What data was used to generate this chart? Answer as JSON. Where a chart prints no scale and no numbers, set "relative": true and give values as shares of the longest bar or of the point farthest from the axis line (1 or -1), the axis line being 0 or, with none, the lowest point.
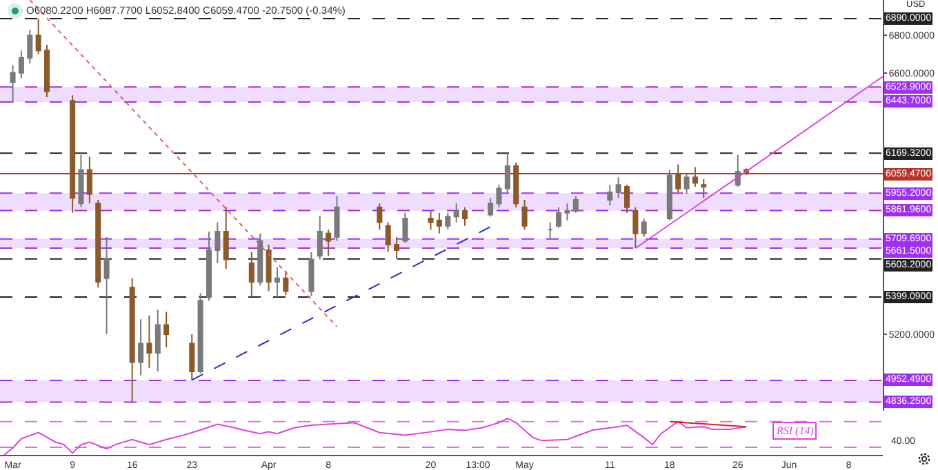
{
  "chart_data": [
    {
      "type": "candlestick",
      "ylabel": "USD",
      "annotations": [
        "O6080.2200 H6087.7700 L6052.8400 C6059.4700 -20.7500 (-0.34%)"
      ],
      "x": [
        "--03-02",
        "--03-03",
        "--03-04",
        "--03-05",
        "--03-06",
        "--03-09",
        "--03-10",
        "--03-11",
        "--03-12",
        "--03-13",
        "--03-16",
        "--03-17",
        "--03-18",
        "--03-19",
        "--03-20",
        "--03-23",
        "--03-24",
        "--03-25",
        "--03-26",
        "--03-27",
        "--03-30",
        "--03-31",
        "--04-01",
        "--04-02",
        "--04-03",
        "--04-06",
        "--04-07",
        "--04-08",
        "--04-09",
        "--04-14",
        "--04-15",
        "--04-16",
        "--04-17",
        "--04-20",
        "--04-21",
        "--04-22",
        "--04-23",
        "--04-24",
        "--04-27",
        "--04-28",
        "--04-29",
        "--04-30",
        "--05-01",
        "--05-04",
        "--05-05",
        "--05-06",
        "--05-07",
        "--05-11",
        "--05-12",
        "--05-13",
        "--05-14",
        "--05-15",
        "--05-18",
        "--05-19",
        "--05-20",
        "--05-21",
        "--05-22",
        "--05-26",
        "--05-27"
      ],
      "ohlc": [
        [
          6550,
          6640,
          6440,
          6600
        ],
        [
          6600,
          6720,
          6570,
          6680
        ],
        [
          6680,
          6830,
          6650,
          6800
        ],
        [
          6800,
          6890,
          6700,
          6720
        ],
        [
          6720,
          6750,
          6470,
          6500
        ],
        [
          6450,
          6480,
          5850,
          5930
        ],
        [
          5900,
          6160,
          5880,
          6080
        ],
        [
          6080,
          6150,
          5900,
          5950
        ],
        [
          5900,
          5920,
          5450,
          5480
        ],
        [
          5500,
          5720,
          5200,
          5600
        ],
        [
          5450,
          5500,
          4836.25,
          5050
        ],
        [
          5050,
          5280,
          4980,
          5150
        ],
        [
          5150,
          5300,
          5020,
          5100
        ],
        [
          5100,
          5330,
          5000,
          5250
        ],
        [
          5250,
          5320,
          5130,
          5200
        ],
        [
          5150,
          5200,
          4952,
          5000
        ],
        [
          5000,
          5420,
          4990,
          5380
        ],
        [
          5400,
          5750,
          5380,
          5650
        ],
        [
          5650,
          5800,
          5580,
          5750
        ],
        [
          5750,
          5880,
          5550,
          5600
        ],
        [
          5580,
          5640,
          5399.09,
          5480
        ],
        [
          5480,
          5740,
          5460,
          5700
        ],
        [
          5650,
          5680,
          5430,
          5480
        ],
        [
          5480,
          5560,
          5400,
          5500
        ],
        [
          5500,
          5540,
          5410,
          5430
        ],
        [
          5430,
          5640,
          5405,
          5600
        ],
        [
          5620,
          5835,
          5600,
          5750
        ],
        [
          5740,
          5760,
          5620,
          5700
        ],
        [
          5720,
          5940,
          5700,
          5880
        ],
        [
          5880,
          5900,
          5760,
          5800
        ],
        [
          5780,
          5800,
          5640,
          5680
        ],
        [
          5680,
          5720,
          5603.2,
          5650
        ],
        [
          5700,
          5850,
          5690,
          5820
        ],
        [
          5820,
          5860,
          5760,
          5800
        ],
        [
          5810,
          5850,
          5740,
          5780
        ],
        [
          5780,
          5850,
          5760,
          5830
        ],
        [
          5830,
          5900,
          5800,
          5860
        ],
        [
          5860,
          5880,
          5780,
          5820
        ],
        [
          5840,
          5930,
          5830,
          5900
        ],
        [
          5900,
          6000,
          5880,
          5980
        ],
        [
          5980,
          6169.32,
          5960,
          6100
        ],
        [
          6100,
          6120,
          5880,
          5900
        ],
        [
          5880,
          5920,
          5760,
          5780
        ],
        [
          5760,
          5800,
          5709.69,
          5760
        ],
        [
          5780,
          5880,
          5770,
          5850
        ],
        [
          5850,
          5900,
          5810,
          5860
        ],
        [
          5860,
          5940,
          5850,
          5920
        ],
        [
          5920,
          6000,
          5890,
          5960
        ],
        [
          5960,
          6040,
          5930,
          6000
        ],
        [
          5990,
          6000,
          5850,
          5880
        ],
        [
          5860,
          5880,
          5661.5,
          5740
        ],
        [
          5740,
          5820,
          5720,
          5800
        ],
        [
          5820,
          6080,
          5810,
          6050
        ],
        [
          6060,
          6110,
          5960,
          5980
        ],
        [
          5980,
          6060,
          5950,
          6040
        ],
        [
          6040,
          6095,
          5990,
          6010
        ],
        [
          6000,
          6030,
          5930,
          5990
        ],
        [
          6000,
          6160,
          5990,
          6070
        ],
        [
          6080.22,
          6087.77,
          6052.84,
          6059.47
        ]
      ],
      "colors": [
        "#7a7a7a",
        "#7a7a7a",
        "#7a7a7a",
        "#8b5a2b",
        "#8b5a2b",
        "#8b5a2b",
        "#7a7a7a",
        "#8b5a2b",
        "#8b5a2b",
        "#7a7a7a",
        "#8b5a2b",
        "#7a7a7a",
        "#8b5a2b",
        "#7a7a7a",
        "#8b5a2b",
        "#8b5a2b",
        "#7a7a7a",
        "#7a7a7a",
        "#7a7a7a",
        "#8b5a2b",
        "#8b5a2b",
        "#7a7a7a",
        "#8b5a2b",
        "#7a7a7a",
        "#8b5a2b",
        "#7a7a7a",
        "#7a7a7a",
        "#8b5a2b",
        "#7a7a7a",
        "#8b5a2b",
        "#8b5a2b",
        "#8b5a2b",
        "#7a7a7a",
        "#8b5a2b",
        "#8b5a2b",
        "#7a7a7a",
        "#7a7a7a",
        "#8b5a2b",
        "#7a7a7a",
        "#7a7a7a",
        "#7a7a7a",
        "#8b5a2b",
        "#8b5a2b",
        "#7a7a7a",
        "#7a7a7a",
        "#7a7a7a",
        "#7a7a7a",
        "#7a7a7a",
        "#7a7a7a",
        "#8b5a2b",
        "#8b5a2b",
        "#7a7a7a",
        "#7a7a7a",
        "#8b5a2b",
        "#7a7a7a",
        "#8b5a2b",
        "#8b5a2b",
        "#7a7a7a",
        "#8b5a2b"
      ],
      "series": [
        {
          "type": "line",
          "color": "#e06060",
          "line_style": "dotted",
          "x": [
            "--03-04",
            "--04-09"
          ],
          "values": [
            6990,
            5240
          ]
        },
        {
          "type": "line",
          "color": "#2a2acc",
          "line_style": "dashed",
          "x": [
            "--03-23",
            "--04-27"
          ],
          "values": [
            4955,
            5775
          ]
        },
        {
          "type": "line",
          "color": "#e040e0",
          "line_style": "solid",
          "x": [
            "--05-14",
            "--06-12"
          ],
          "values": [
            5660,
            6580
          ]
        }
      ],
      "xlim": [
        "--02-29T12:00",
        "--06-12"
      ],
      "ylim": [
        4790,
        6990
      ],
      "yticks": [
        {
          "value": 6800,
          "label": "6800.0000"
        },
        {
          "value": 6600,
          "label": "6600.0000"
        },
        {
          "value": 5200,
          "label": "5200.0000"
        }
      ],
      "tick_labels": "y",
      "bands": [
        {
          "axis": "y",
          "from": 6443.7,
          "to": 6523.9,
          "color": "#f0dcff"
        },
        {
          "axis": "y",
          "from": 5861.96,
          "to": 5955.2,
          "color": "#f0dcff"
        },
        {
          "axis": "y",
          "from": 5661.5,
          "to": 5709.69,
          "color": "#f0dcff"
        },
        {
          "axis": "y",
          "from": 4836.25,
          "to": 4952.49,
          "color": "#f0dcff"
        }
      ],
      "ref_lines": [
        {
          "axis": "y",
          "value": 6890,
          "label": "6890.0000",
          "color": "#222222",
          "line_style": "dashed"
        },
        {
          "axis": "y",
          "value": 6523.9,
          "label": "6523.9000",
          "color": "#a030f0",
          "line_style": "dashed"
        },
        {
          "axis": "y",
          "value": 6443.7,
          "label": "6443.7000",
          "color": "#a030f0",
          "line_style": "dashed"
        },
        {
          "axis": "y",
          "value": 6169.32,
          "label": "6169.3200",
          "color": "#222222",
          "line_style": "dashed"
        },
        {
          "axis": "y",
          "value": 6059.47,
          "label": "6059.4700",
          "color": "#b8332a",
          "line_style": "solid"
        },
        {
          "axis": "y",
          "value": 5955.2,
          "label": "5955.2000",
          "color": "#a030f0",
          "line_style": "dashed"
        },
        {
          "axis": "y",
          "value": 5861.96,
          "label": "5861.9600",
          "color": "#a030f0",
          "line_style": "dashed"
        },
        {
          "axis": "y",
          "value": 5709.69,
          "label": "5709.6900",
          "color": "#a030f0",
          "line_style": "dashed"
        },
        {
          "axis": "y",
          "value": 5661.5,
          "label": "5661.5000",
          "color": "#a030f0",
          "line_style": "dashed"
        },
        {
          "axis": "y",
          "value": 5603.2,
          "label": "5603.2000",
          "color": "#222222",
          "line_style": "dashed"
        },
        {
          "axis": "y",
          "value": 5399.09,
          "label": "5399.0900",
          "color": "#222222",
          "line_style": "dashed"
        },
        {
          "axis": "y",
          "value": 4952.49,
          "label": "4952.4900",
          "color": "#a030f0",
          "line_style": "dashed"
        },
        {
          "axis": "y",
          "value": 4836.25,
          "label": "4836.2500",
          "color": "#a030f0",
          "line_style": "dashed"
        }
      ]
    },
    {
      "type": "line",
      "legend": false,
      "relative": true,
      "annotations": [
        "40.00"
      ],
      "x": [
        "--03-01",
        "--03-02",
        "--03-03",
        "--03-05",
        "--03-07",
        "--03-08",
        "--03-09",
        "--03-10",
        "--03-11",
        "--03-13",
        "--03-14",
        "--03-16",
        "--03-18",
        "--03-20",
        "--03-22",
        "--03-24",
        "--03-26",
        "--03-28",
        "--03-29",
        "--03-31",
        "--04-01",
        "--04-02",
        "--04-04",
        "--04-06",
        "--04-11",
        "--04-14",
        "--04-17",
        "--04-20",
        "--04-22",
        "--04-24",
        "--04-26",
        "--04-28",
        "--04-29",
        "--04-30",
        "--05-02",
        "--05-03",
        "--05-06",
        "--05-09",
        "--05-12",
        "--05-13",
        "--05-15",
        "--05-16",
        "--05-17",
        "--05-19",
        "--05-20",
        "--05-22",
        "--05-23",
        "--05-25",
        "--05-27"
      ],
      "series": [
        {
          "name": "RSI (14)",
          "color": "#e040e0",
          "values": [
            0,
            0.19,
            0.44,
            0.61,
            0.35,
            0.28,
            0.05,
            0.28,
            0.35,
            0.16,
            0.28,
            0.42,
            0.28,
            0.42,
            0.54,
            0.68,
            0.84,
            0.74,
            0.68,
            0.58,
            0.63,
            0.58,
            0.74,
            0.81,
            0.88,
            0.61,
            0.54,
            0.63,
            0.7,
            0.67,
            0.74,
            0.88,
            1,
            0.88,
            0.47,
            0.39,
            0.42,
            0.68,
            0.77,
            0.81,
            0.47,
            0.28,
            0.58,
            0.91,
            0.74,
            0.77,
            0.7,
            0.7,
            0.77
          ]
        },
        {
          "type": "line",
          "color": "#e02020",
          "x": [
            "--05-18",
            "--05-27"
          ],
          "values": [
            0.91,
            0.77
          ]
        }
      ],
      "xlim": [
        "--02-29T12:00",
        "--06-12"
      ],
      "xticks": [
        {
          "value": "--03-02",
          "label": "Mar"
        },
        {
          "value": "--03-09",
          "label": "9"
        },
        {
          "value": "--03-16",
          "label": "16"
        },
        {
          "value": "--03-23",
          "label": "23"
        },
        {
          "value": "--04-01",
          "label": "Apr"
        },
        {
          "value": "--04-08",
          "label": "8"
        },
        {
          "value": "--04-20",
          "label": "20"
        },
        {
          "value": "--04-25T13:00",
          "label": "13:00"
        },
        {
          "value": "--05-01",
          "label": "May"
        },
        {
          "value": "--05-11",
          "label": "11"
        },
        {
          "value": "--05-18",
          "label": "18"
        },
        {
          "value": "--05-26",
          "label": "26"
        },
        {
          "value": "--06-01",
          "label": "Jun"
        },
        {
          "value": "--06-08",
          "label": "8"
        }
      ],
      "ref_lines": [
        {
          "axis": "y",
          "value": 0.91,
          "color": "#e070e0",
          "line_style": "dashed"
        },
        {
          "axis": "y",
          "value": 0.21,
          "color": "#e070e0",
          "line_style": "dashed"
        }
      ]
    }
  ]
}
